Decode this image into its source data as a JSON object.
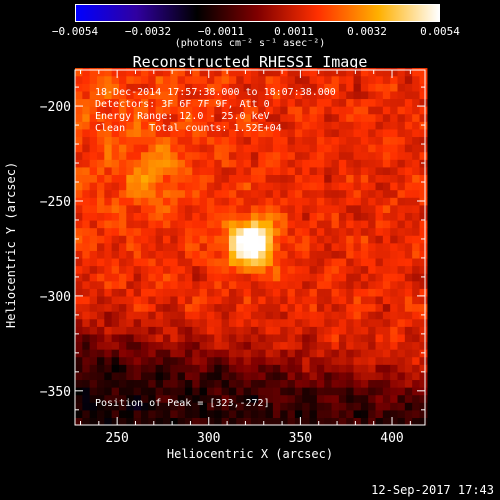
{
  "colorbar": {
    "ticks": [
      "−0.0054",
      "−0.0032",
      "−0.0011",
      "0.0011",
      "0.0032",
      "0.0054"
    ],
    "unit": "(photons cm⁻² s⁻¹ asec⁻²)",
    "range": [
      -0.0054,
      0.0054
    ],
    "colormap": [
      "#0000ff",
      "#3000a0",
      "#000000",
      "#800000",
      "#ff3000",
      "#ffb000",
      "#ffffff"
    ]
  },
  "chart_data": {
    "type": "heatmap",
    "title": "Reconstructed RHESSI Image",
    "xlabel": "Heliocentric X (arcsec)",
    "ylabel": "Heliocentric Y (arcsec)",
    "xlim": [
      227,
      418
    ],
    "ylim": [
      -368,
      -181
    ],
    "xticks": [
      250,
      300,
      350,
      400
    ],
    "yticks": [
      -200,
      -250,
      -300,
      -350
    ],
    "peak": {
      "x": 323,
      "y": -272,
      "value": 0.0054
    },
    "secondary_source": {
      "x": 270,
      "y": -236
    },
    "pixel_size_arcsec": 4
  },
  "info": {
    "line1": "18-Dec-2014 17:57:38.000 to 18:07:38.000",
    "line2": "Detectors: 3F 6F 7F 9F, Att 0",
    "line3": "Energy Range: 12.0 - 25.0 keV",
    "line4": "Clean    Total counts: 1.52E+04"
  },
  "peak_label": "Position of Peak = [323,-272]",
  "timestamp": "12-Sep-2017 17:43"
}
